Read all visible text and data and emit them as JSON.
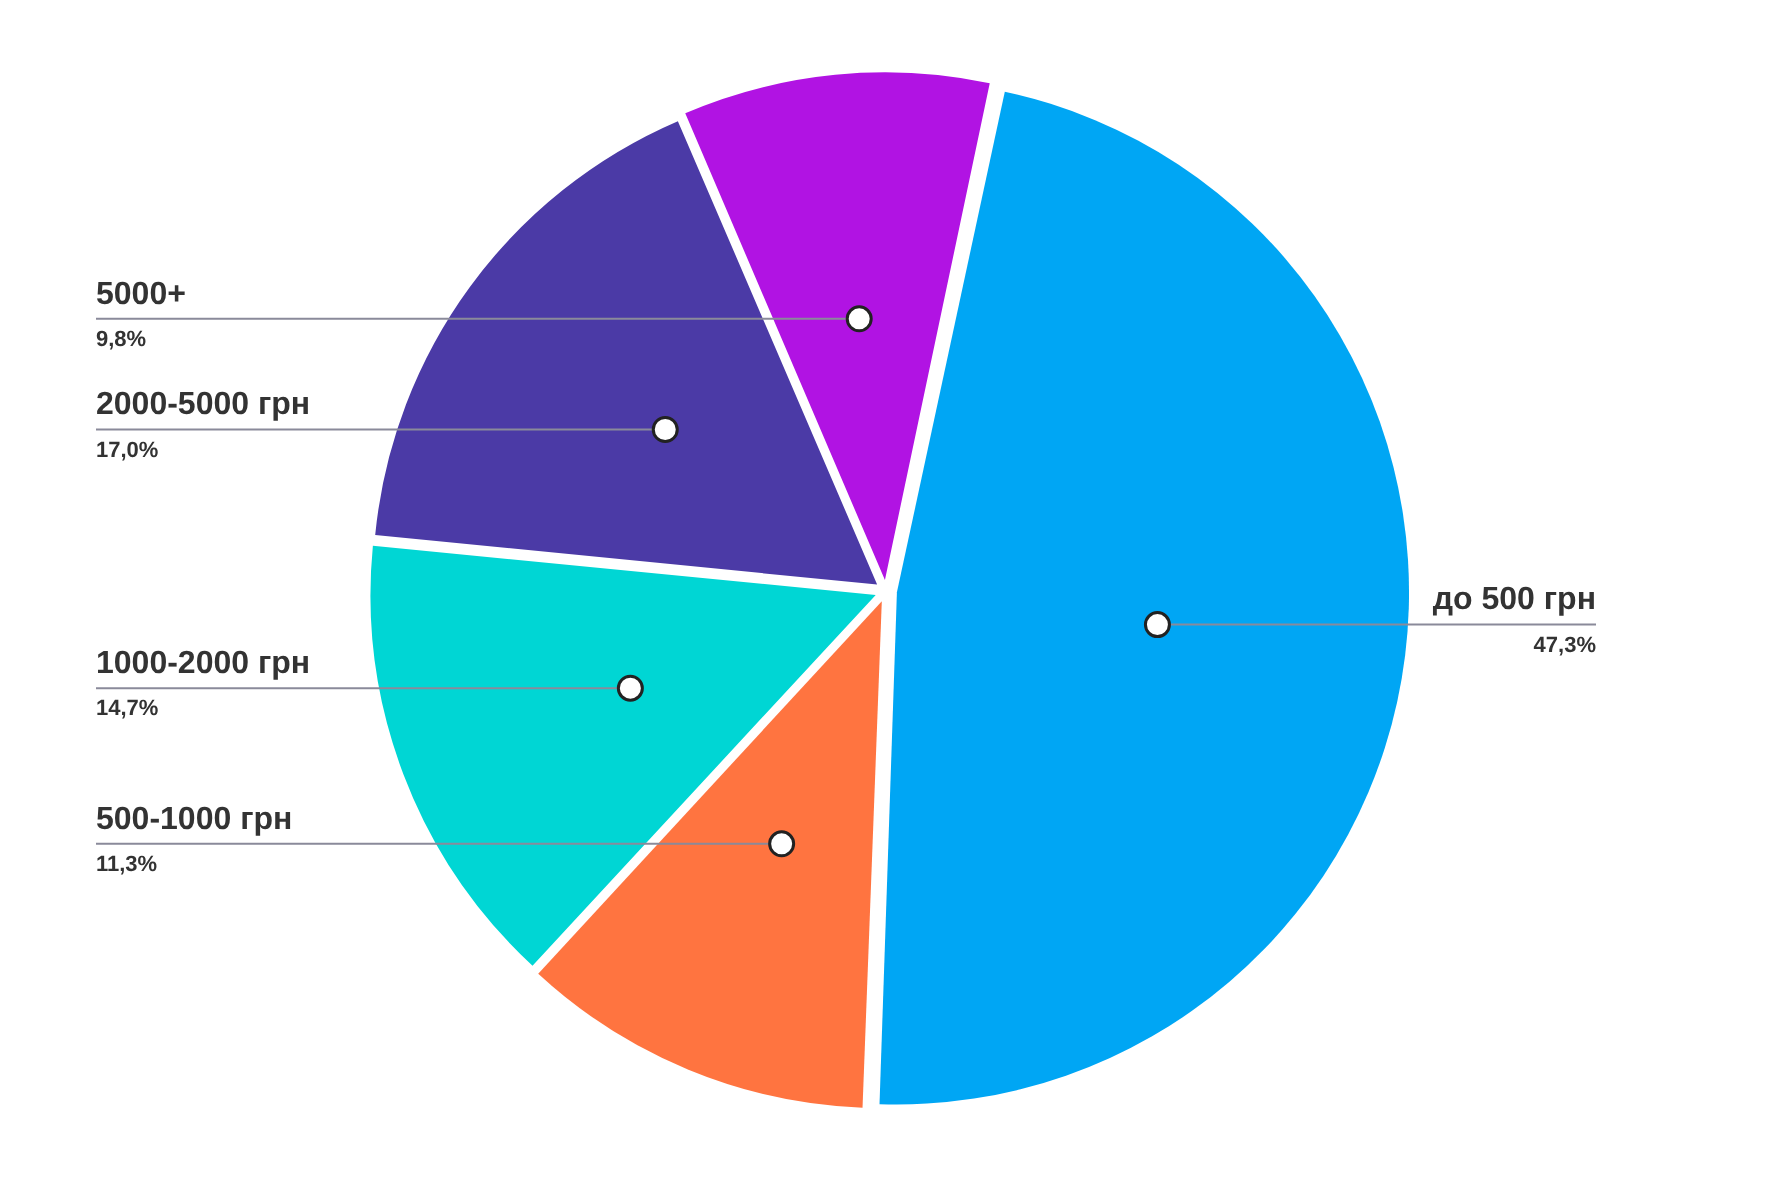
{
  "chart_data": {
    "type": "pie",
    "categories": [
      "до 500 грн",
      "500-1000 грн",
      "1000-2000 грн",
      "2000-5000 грн",
      "5000+"
    ],
    "values": [
      47.3,
      11.3,
      14.7,
      17.0,
      9.8
    ],
    "value_labels": [
      "47,3%",
      "11,3%",
      "14,7%",
      "17,0%",
      "9,8%"
    ],
    "colors": [
      "#00a6f4",
      "#ff7440",
      "#00d6d4",
      "#4b3aa6",
      "#b113e3"
    ],
    "legend": false
  }
}
